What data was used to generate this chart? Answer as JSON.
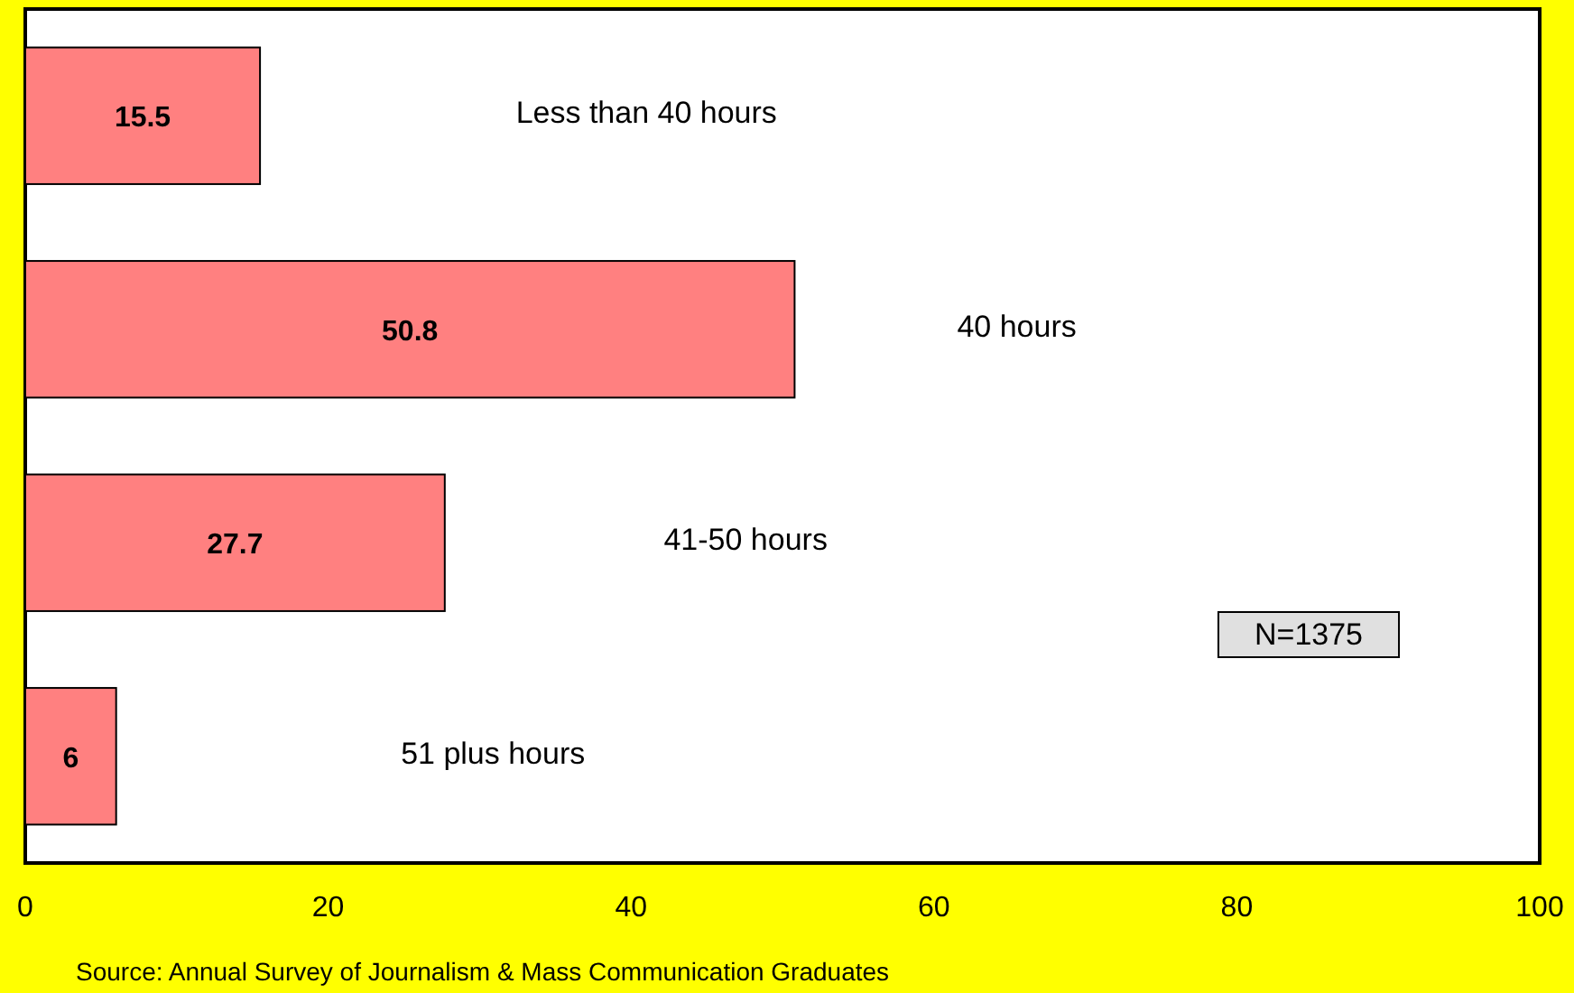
{
  "chart_data": {
    "type": "bar",
    "orientation": "horizontal",
    "categories": [
      "Less than 40 hours",
      "40 hours",
      "41-50 hours",
      "51 plus hours"
    ],
    "values": [
      15.5,
      50.8,
      27.7,
      6
    ],
    "color": "#ff8080",
    "data_labels": true,
    "xlim": [
      0,
      100
    ],
    "xticks": [
      0,
      20,
      40,
      60,
      80,
      100
    ],
    "grid": false,
    "annotations": [
      "N=1375",
      "Source:  Annual Survey of Journalism & Mass Communication Graduates"
    ]
  }
}
